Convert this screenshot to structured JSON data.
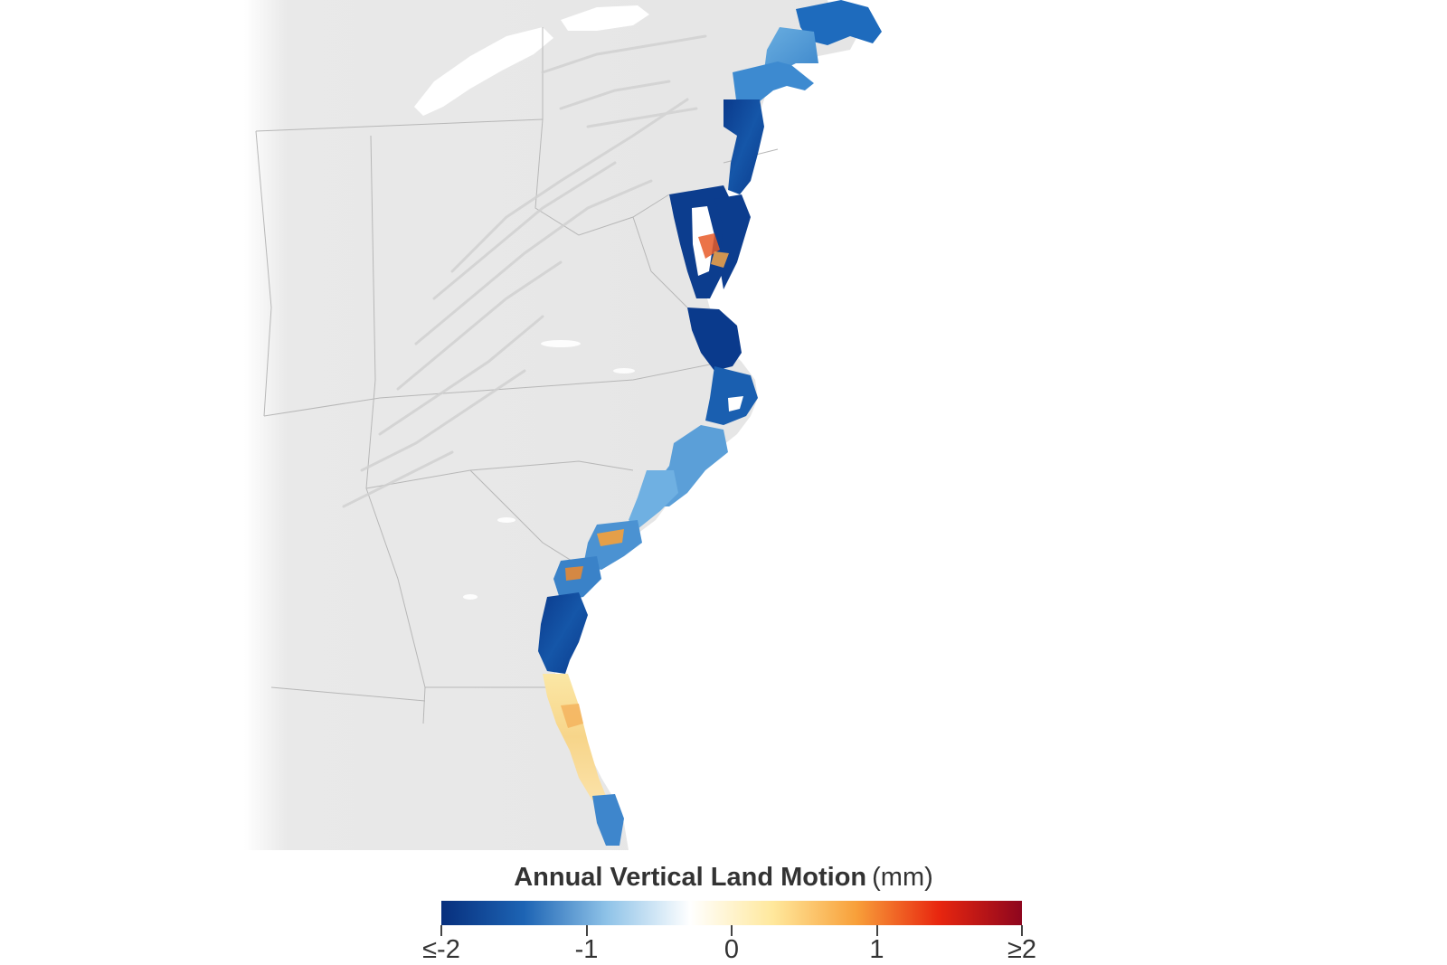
{
  "map": {
    "land_color": "#e8e8e8",
    "relief_color": "#d2d2d2",
    "water_color": "#ffffff",
    "border_color": "#b7b7b7"
  },
  "legend": {
    "title": "Annual Vertical Land Motion",
    "unit": "(mm)",
    "ticks": [
      "≤-2",
      "-1",
      "0",
      "1",
      "≥2"
    ],
    "tick_values": [
      -2,
      -1,
      0,
      1,
      2
    ],
    "colors": [
      "#072f7d",
      "#1d64b4",
      "#8fc3e8",
      "#ffffff",
      "#ffe89c",
      "#f8a03a",
      "#e8260f",
      "#8e061e"
    ]
  }
}
